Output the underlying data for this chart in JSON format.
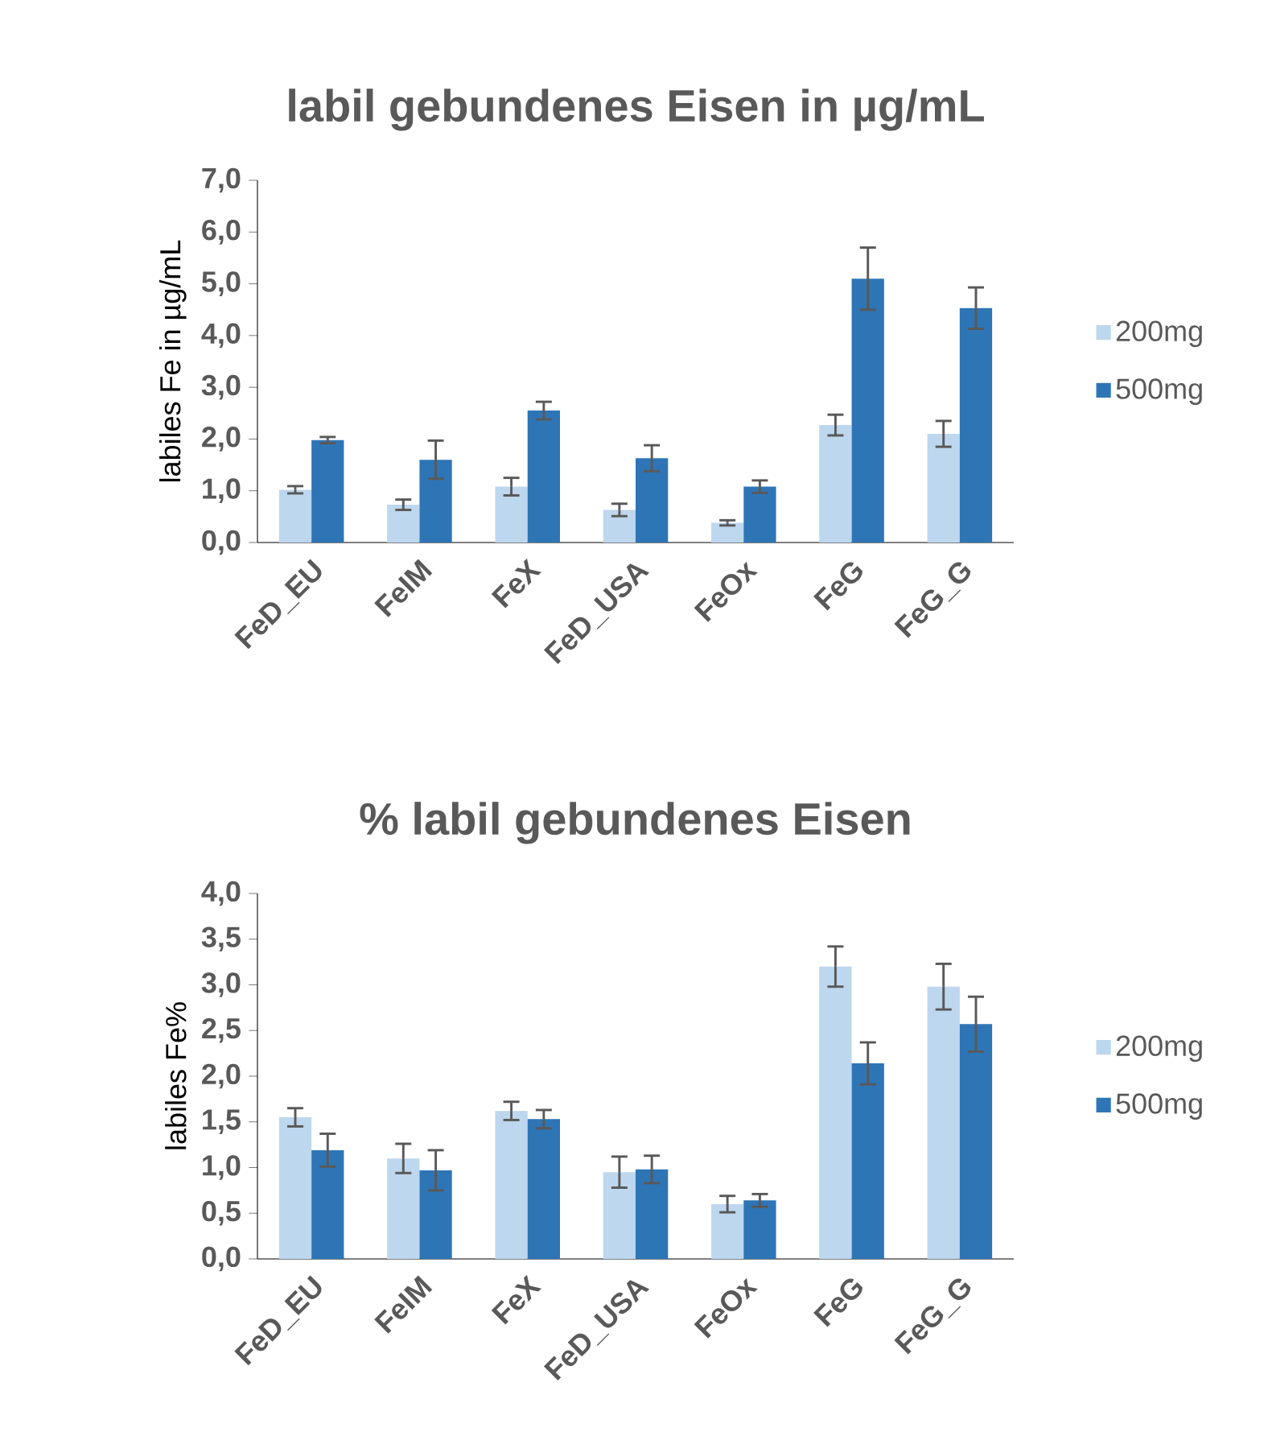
{
  "chart_data": [
    {
      "type": "bar",
      "title": "labil gebundenes Eisen in µg/mL",
      "ylabel": "labiles Fe in µg/mL",
      "categories": [
        "FeD_EU",
        "FeIM",
        "FeX",
        "FeD_USA",
        "FeOx",
        "FeG",
        "FeG_G"
      ],
      "series": [
        {
          "name": "200mg",
          "color": "#bdd7ee",
          "values": [
            1.02,
            0.73,
            1.08,
            0.63,
            0.38,
            2.27,
            2.1
          ],
          "errors": [
            0.07,
            0.1,
            0.17,
            0.12,
            0.05,
            0.2,
            0.25
          ]
        },
        {
          "name": "500mg",
          "color": "#2e75b6",
          "values": [
            1.98,
            1.6,
            2.55,
            1.63,
            1.08,
            5.1,
            4.53
          ],
          "errors": [
            0.06,
            0.37,
            0.17,
            0.25,
            0.12,
            0.6,
            0.4
          ]
        }
      ],
      "ylim": [
        0,
        7
      ],
      "yticks": [
        {
          "value": 0,
          "label": "0,0"
        },
        {
          "value": 1,
          "label": "1,0"
        },
        {
          "value": 2,
          "label": "2,0"
        },
        {
          "value": 3,
          "label": "3,0"
        },
        {
          "value": 4,
          "label": "4,0"
        },
        {
          "value": 5,
          "label": "5,0"
        },
        {
          "value": 6,
          "label": "6,0"
        },
        {
          "value": 7,
          "label": "7,0"
        }
      ],
      "legend": "right"
    },
    {
      "type": "bar",
      "title": "% labil gebundenes Eisen",
      "ylabel": "labiles Fe%",
      "categories": [
        "FeD_EU",
        "FeIM",
        "FeX",
        "FeD_USA",
        "FeOx",
        "FeG",
        "FeG_G"
      ],
      "series": [
        {
          "name": "200mg",
          "color": "#bdd7ee",
          "values": [
            1.55,
            1.1,
            1.62,
            0.95,
            0.6,
            3.2,
            2.98
          ],
          "errors": [
            0.1,
            0.16,
            0.1,
            0.17,
            0.09,
            0.22,
            0.25
          ]
        },
        {
          "name": "500mg",
          "color": "#2e75b6",
          "values": [
            1.19,
            0.97,
            1.53,
            0.98,
            0.64,
            2.14,
            2.57
          ],
          "errors": [
            0.18,
            0.22,
            0.1,
            0.15,
            0.07,
            0.23,
            0.3
          ]
        }
      ],
      "ylim": [
        0,
        4
      ],
      "yticks": [
        {
          "value": 0,
          "label": "0,0"
        },
        {
          "value": 0.5,
          "label": "0,5"
        },
        {
          "value": 1,
          "label": "1,0"
        },
        {
          "value": 1.5,
          "label": "1,5"
        },
        {
          "value": 2,
          "label": "2,0"
        },
        {
          "value": 2.5,
          "label": "2,5"
        },
        {
          "value": 3,
          "label": "3,0"
        },
        {
          "value": 3.5,
          "label": "3,5"
        },
        {
          "value": 4,
          "label": "4,0"
        }
      ],
      "legend": "right"
    }
  ]
}
